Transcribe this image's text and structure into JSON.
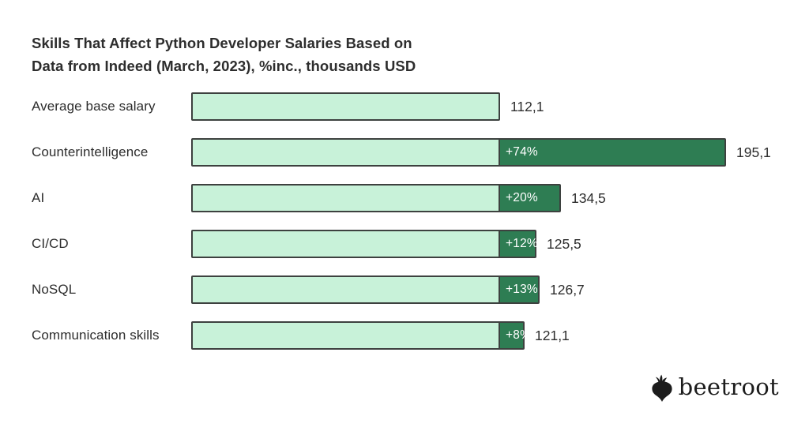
{
  "title": {
    "line1": "Skills That Affect Python Developer Salaries Based on",
    "line2": "Data from Indeed (March, 2023), %inc., thousands USD"
  },
  "chart_data": {
    "type": "bar",
    "orientation": "horizontal",
    "title": "Skills That Affect Python Developer Salaries Based on Data from Indeed (March, 2023), %inc., thousands USD",
    "source": "Indeed (March, 2023)",
    "value_unit": "thousands USD",
    "base_value": 112.1,
    "xlim": [
      0,
      210
    ],
    "grid": false,
    "legend": false,
    "categories": [
      "Average base salary",
      "Counterintelligence",
      "AI",
      "CI/CD",
      "NoSQL",
      "Communication skills"
    ],
    "values": [
      112.1,
      195.1,
      134.5,
      125.5,
      126.7,
      121.1
    ],
    "rows": [
      {
        "label": "Average base salary",
        "value": 112.1,
        "value_label": "112,1",
        "pct_increase": null,
        "pct_label": ""
      },
      {
        "label": "Counterintelligence",
        "value": 195.1,
        "value_label": "195,1",
        "pct_increase": 74,
        "pct_label": "+74%"
      },
      {
        "label": "AI",
        "value": 134.5,
        "value_label": "134,5",
        "pct_increase": 20,
        "pct_label": "+20%"
      },
      {
        "label": "CI/CD",
        "value": 125.5,
        "value_label": "125,5",
        "pct_increase": 12,
        "pct_label": "+12%"
      },
      {
        "label": "NoSQL",
        "value": 126.7,
        "value_label": "126,7",
        "pct_increase": 13,
        "pct_label": "+13%"
      },
      {
        "label": "Communication skills",
        "value": 121.1,
        "value_label": "121,1",
        "pct_increase": 8,
        "pct_label": "+8%"
      }
    ],
    "colors": {
      "bar_light": "#c8f2d9",
      "bar_dark": "#2e7d53",
      "bar_border": "#3d413f",
      "text": "#2d2d2d",
      "pct_text": "#ffffff"
    }
  },
  "footer": {
    "brand": "beetroot"
  }
}
